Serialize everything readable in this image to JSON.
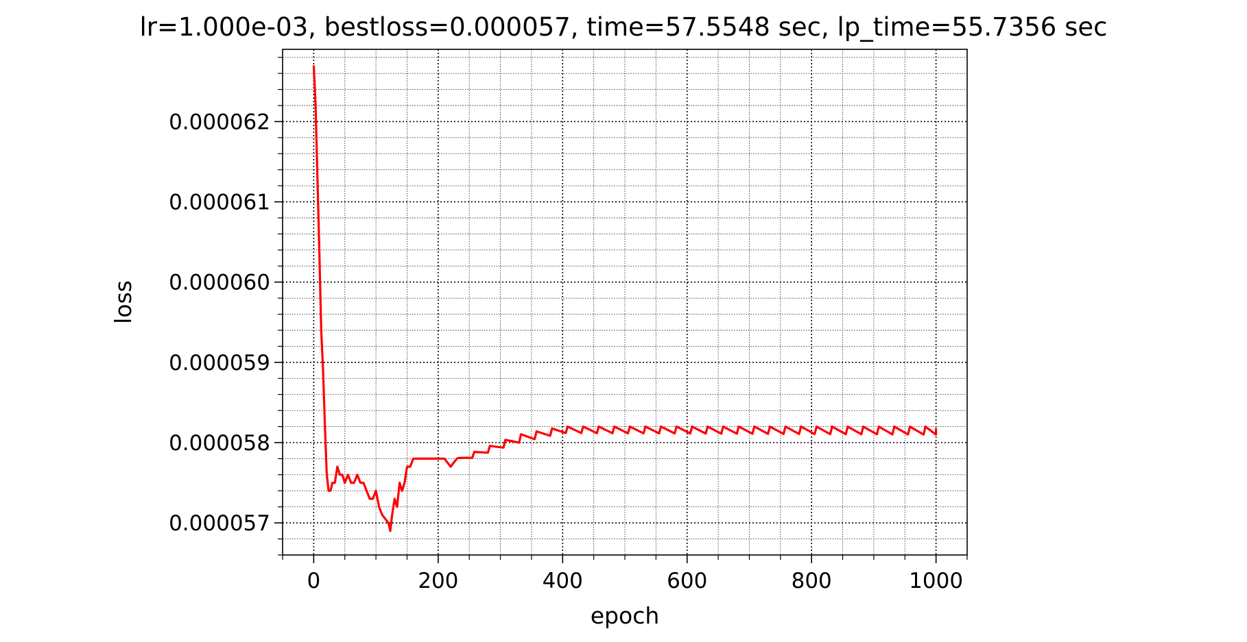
{
  "chart_data": {
    "type": "line",
    "title": "lr=1.000e-03, bestloss=0.000057, time=57.5548 sec, lp_time=55.7356 sec",
    "xlabel": "epoch",
    "ylabel": "loss",
    "xlim": [
      -50,
      1050
    ],
    "ylim": [
      5.66e-05,
      6.29e-05
    ],
    "x_ticks": [
      0,
      200,
      400,
      600,
      800,
      1000
    ],
    "x_tick_labels": [
      "0",
      "200",
      "400",
      "600",
      "800",
      "1000"
    ],
    "y_ticks": [
      5.7e-05,
      5.8e-05,
      5.9e-05,
      6e-05,
      6.1e-05,
      6.2e-05
    ],
    "y_tick_labels": [
      "0.000057",
      "0.000058",
      "0.000059",
      "0.000060",
      "0.000061",
      "0.000062"
    ],
    "x_minor_step": 50,
    "y_minor_step": 2e-07,
    "grid": {
      "major": true,
      "minor": true,
      "major_style": "dotted",
      "minor_style": "dotted"
    },
    "legend": "none",
    "series_color": "#ff0000",
    "series": [
      {
        "x": [
          0,
          3,
          6,
          9,
          12,
          15,
          18,
          21,
          24,
          27,
          30,
          34,
          38,
          42,
          46,
          50,
          55,
          60,
          65,
          70,
          75,
          80,
          85,
          90,
          95,
          100,
          105,
          110,
          115,
          120,
          123,
          126,
          130,
          134,
          138,
          142,
          146,
          150,
          155,
          160,
          165,
          170,
          175,
          180,
          190,
          200,
          210,
          220,
          230
        ],
        "y": [
          6.27e-05,
          6.22e-05,
          6.13e-05,
          6.04e-05,
          5.94e-05,
          5.89e-05,
          5.82e-05,
          5.76e-05,
          5.74e-05,
          5.74e-05,
          5.75e-05,
          5.75e-05,
          5.77e-05,
          5.76e-05,
          5.76e-05,
          5.75e-05,
          5.76e-05,
          5.75e-05,
          5.75e-05,
          5.76e-05,
          5.75e-05,
          5.75e-05,
          5.74e-05,
          5.73e-05,
          5.73e-05,
          5.74e-05,
          5.72e-05,
          5.71e-05,
          5.705e-05,
          5.7e-05,
          5.69e-05,
          5.71e-05,
          5.73e-05,
          5.72e-05,
          5.75e-05,
          5.74e-05,
          5.75e-05,
          5.77e-05,
          5.77e-05,
          5.78e-05,
          5.78e-05,
          5.78e-05,
          5.78e-05,
          5.78e-05,
          5.78e-05,
          5.78e-05,
          5.78e-05,
          5.77e-05,
          5.78e-05
        ],
        "sawtooth_tail": {
          "x_start": 230,
          "x_end": 1000,
          "period": 25,
          "end_tilt": -0.2,
          "peaks": [
            [
              230,
              5.78e-05
            ],
            [
              330,
              5.81e-05
            ],
            [
              400,
              5.82e-05
            ],
            [
              1000,
              5.82e-05
            ]
          ],
          "troughs": [
            [
              230,
              5.775e-05
            ],
            [
              330,
              5.8e-05
            ],
            [
              400,
              5.812e-05
            ],
            [
              1000,
              5.81e-05
            ]
          ]
        }
      }
    ]
  }
}
